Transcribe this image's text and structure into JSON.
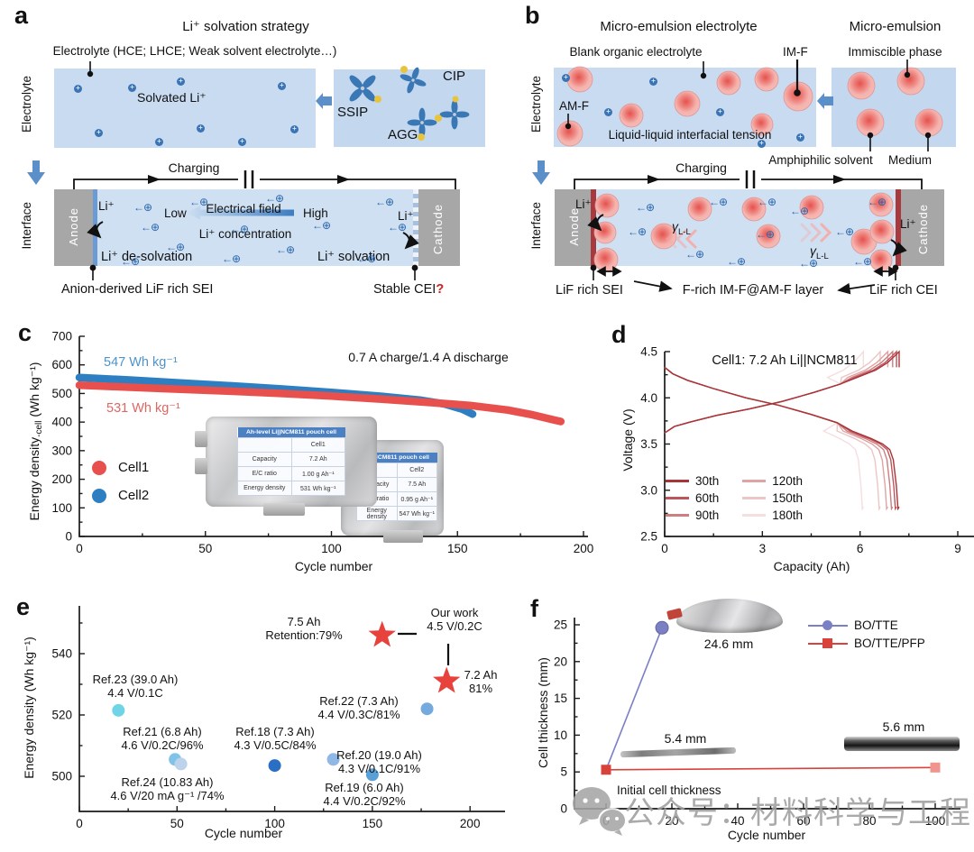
{
  "figure": {
    "a": {
      "letter": "a",
      "title": "Li⁺ solvation strategy",
      "electrolyte_note": "Electrolyte (HCE; LHCE; Weak solvent electrolyte…)",
      "side_electrolyte": "Electrolyte",
      "solvated": "Solvated Li⁺",
      "ssip": "SSIP",
      "cip": "CIP",
      "agg": "AGG",
      "charging": "Charging",
      "side_interface": "Interface",
      "anode": "Anode",
      "cathode": "Cathode",
      "li": "Li⁺",
      "electrical_field": "Electrical field",
      "low": "Low",
      "high": "High",
      "li_concentration": "Li⁺ concentration",
      "desolvation": "Li⁺ de-solvation",
      "solvation": "Li⁺ solvation",
      "sei": "Anion-derived LiF rich SEI",
      "cei": "Stable CEI",
      "cei_mark": "?"
    },
    "b": {
      "letter": "b",
      "title": "Micro-emulsion electrolyte",
      "inset_title": "Micro-emulsion",
      "blank": "Blank organic electrolyte",
      "imf": "IM-F",
      "immiscible": "Immiscible phase",
      "side_electrolyte": "Electrolyte",
      "amf": "AM-F",
      "tension": "Liquid-liquid interfacial tension",
      "amphiphilic": "Amphiphilic solvent",
      "medium": "Medium",
      "charging": "Charging",
      "side_interface": "Interface",
      "anode": "Anode",
      "cathode": "Cathode",
      "li": "Li⁺",
      "gamma": "γ",
      "gamma_sub": "L-L",
      "sei": "LiF rich SEI",
      "layer": "F-rich IM-F@AM-F layer",
      "cei": "LiF rich CEI"
    },
    "c": {
      "letter": "c",
      "ylabel_main": "Energy density",
      "ylabel_sub": "-cell",
      "ylabel_unit": " (Wh kg⁻¹)",
      "xlabel": "Cycle number",
      "annotation": "0.7 A charge/1.4 A discharge",
      "cell2_value": "547 Wh kg⁻¹",
      "cell1_value": "531 Wh kg⁻¹",
      "inset": {
        "cell1": {
          "header": "Ah-level Li||NCM811 pouch cell",
          "rows": [
            [
              "",
              "Cell1"
            ],
            [
              "Capacity",
              "7.2 Ah"
            ],
            [
              "E/C ratio",
              "1.00 g Ah⁻¹"
            ],
            [
              "Energy density",
              "531 Wh kg⁻¹"
            ]
          ]
        },
        "cell2": {
          "header": "Li||NCM811 pouch cell",
          "rows": [
            [
              "",
              "Cell2"
            ],
            [
              "Capacity",
              "7.5 Ah"
            ],
            [
              "E/C ratio",
              "0.95 g Ah⁻¹"
            ],
            [
              "Energy density",
              "547 Wh kg⁻¹"
            ]
          ]
        }
      }
    },
    "d": {
      "letter": "d",
      "annotation": "Cell1: 7.2 Ah Li||NCM811",
      "ylabel": "Voltage (V)",
      "xlabel": "Capacity (Ah)"
    },
    "e": {
      "letter": "e",
      "ylabel": "Energy density (Wh kg⁻¹)",
      "xlabel": "Cycle number"
    },
    "f": {
      "letter": "f",
      "ylabel": "Cell thickness (mm)",
      "xlabel": "Cycle number",
      "watermark": "公众号：材料科学与工程"
    },
    "sym": {
      "plus": "+",
      "ion_arrow": "←⊕"
    }
  },
  "chart_data": [
    {
      "id": "c",
      "type": "scatter",
      "xlabel": "Cycle number",
      "ylabel": "Energy density-cell (Wh kg⁻¹)",
      "xlim": [
        0,
        200
      ],
      "ylim": [
        0,
        700
      ],
      "xticks": [
        0,
        50,
        100,
        150,
        200
      ],
      "xminor": [
        25,
        75,
        125,
        175
      ],
      "yticks": [
        0,
        100,
        200,
        300,
        400,
        500,
        600,
        700
      ],
      "yminor": [
        50,
        150,
        250,
        350,
        450,
        550,
        650
      ],
      "annotation": "0.7 A charge/1.4 A discharge",
      "legend_position": "lower-left",
      "series": [
        {
          "name": "Cell1",
          "color": "#e8504d",
          "value_label": "531 Wh kg⁻¹",
          "points": [
            [
              0,
              529
            ],
            [
              20,
              522
            ],
            [
              40,
              515
            ],
            [
              60,
              508
            ],
            [
              80,
              500
            ],
            [
              100,
              491
            ],
            [
              120,
              480
            ],
            [
              140,
              468
            ],
            [
              155,
              458
            ],
            [
              170,
              442
            ],
            [
              180,
              425
            ],
            [
              188,
              408
            ],
            [
              191,
              402
            ]
          ]
        },
        {
          "name": "Cell2",
          "color": "#2e7fc1",
          "value_label": "547 Wh kg⁻¹",
          "points": [
            [
              0,
              556
            ],
            [
              20,
              547
            ],
            [
              40,
              537
            ],
            [
              60,
              527
            ],
            [
              80,
              516
            ],
            [
              100,
              504
            ],
            [
              120,
              490
            ],
            [
              135,
              477
            ],
            [
              145,
              463
            ],
            [
              152,
              445
            ],
            [
              156,
              428
            ]
          ]
        }
      ]
    },
    {
      "id": "d",
      "type": "line",
      "annotation": "Cell1: 7.2 Ah Li||NCM811",
      "xlabel": "Capacity (Ah)",
      "ylabel": "Voltage (V)",
      "xlim": [
        0,
        9
      ],
      "ylim": [
        2.5,
        4.5
      ],
      "xticks": [
        0,
        3,
        6,
        9
      ],
      "xminor": [
        1.5,
        4.5,
        7.5
      ],
      "yticks": [
        "2.5",
        "3.0",
        "3.5",
        "4.0",
        "4.5"
      ],
      "yminor": [
        2.75,
        3.25,
        3.75,
        4.25
      ],
      "voltage_window": [
        2.8,
        4.5
      ],
      "series": [
        {
          "name": "30th",
          "capacity": 7.2,
          "color": "#a93438"
        },
        {
          "name": "60th",
          "capacity": 7.12,
          "color": "#bd555b"
        },
        {
          "name": "90th",
          "capacity": 7.0,
          "color": "#cf7d80"
        },
        {
          "name": "120th",
          "capacity": 6.85,
          "color": "#dfa3a3"
        },
        {
          "name": "150th",
          "capacity": 6.62,
          "color": "#ecc6c5"
        },
        {
          "name": "180th",
          "capacity": 6.1,
          "color": "#f4dfde"
        }
      ]
    },
    {
      "id": "e",
      "type": "scatter",
      "xlabel": "Cycle number",
      "ylabel": "Energy density (Wh kg⁻¹)",
      "xlim": [
        0,
        218
      ],
      "ylim": [
        496,
        552
      ],
      "xticks": [
        0,
        50,
        100,
        150,
        200
      ],
      "xminor": [
        25,
        75,
        125,
        175
      ],
      "yticks": [
        500,
        520,
        540
      ],
      "yminor": [
        510,
        530,
        550
      ],
      "points": [
        {
          "name": "Ref23",
          "x": 20,
          "y": 521.5,
          "color": "#6fd4e6",
          "marker": "circle",
          "label1": "Ref.23 (39.0 Ah)",
          "label2": "4.4 V/0.1C"
        },
        {
          "name": "Ref21",
          "x": 49,
          "y": 505.5,
          "color": "#7fc3e8",
          "marker": "circle",
          "label1": "Ref.21 (6.8 Ah)",
          "label2": "4.6 V/0.2C/96%"
        },
        {
          "name": "Ref24",
          "x": 52,
          "y": 504,
          "color": "#bcd3eb",
          "marker": "circle",
          "label1": "Ref.24 (10.83 Ah)",
          "label2": "4.6 V/20 mA g⁻¹ /74%"
        },
        {
          "name": "Ref18",
          "x": 100,
          "y": 503.5,
          "color": "#2a6fc4",
          "marker": "circle",
          "label1": "Ref.18 (7.3 Ah)",
          "label2": "4.3 V/0.5C/84%"
        },
        {
          "name": "Ref20",
          "x": 130,
          "y": 505.5,
          "color": "#8fb8e6",
          "marker": "circle",
          "label1": "Ref.20 (19.0 Ah)",
          "label2": "4.3 V/0.1C/91%"
        },
        {
          "name": "Ref19",
          "x": 150,
          "y": 500.5,
          "color": "#59a0d6",
          "marker": "circle",
          "label1": "Ref.19 (6.0 Ah)",
          "label2": "4.4 V/0.2C/92%"
        },
        {
          "name": "Ref22",
          "x": 178,
          "y": 522,
          "color": "#74aadd",
          "marker": "circle",
          "label1": "Ref.22 (7.3 Ah)",
          "label2": "4.4 V/0.3C/81%"
        },
        {
          "name": "OurWork75",
          "x": 155,
          "y": 546,
          "color": "#e8423d",
          "marker": "star",
          "label1": "7.5 Ah",
          "label2": "Retention:79%"
        },
        {
          "name": "OurWork72",
          "x": 188,
          "y": 531,
          "color": "#e8423d",
          "marker": "star",
          "label1": "7.2 Ah",
          "label2": "81%"
        }
      ],
      "our_work": {
        "line1": "Our work",
        "line2": "4.5 V/0.2C"
      }
    },
    {
      "id": "f",
      "type": "line",
      "xlabel": "Cycle number",
      "ylabel": "Cell thickness (mm)",
      "xlim": [
        0,
        100
      ],
      "ylim": [
        0,
        25
      ],
      "xticks": [
        0,
        20,
        40,
        60,
        80,
        100
      ],
      "xminor": [
        10,
        30,
        50,
        70,
        90
      ],
      "yticks": [
        0,
        5,
        10,
        15,
        20,
        25
      ],
      "yminor": [
        2.5,
        7.5,
        12.5,
        17.5,
        22.5
      ],
      "series": [
        {
          "name": "BO/TTE",
          "color": "#7b7fc4",
          "marker": "circle",
          "points": [
            [
              0,
              5.3
            ],
            [
              17,
              24.6
            ]
          ]
        },
        {
          "name": "BO/TTE/PFP",
          "color": "#d8423a",
          "marker": "square",
          "points": [
            [
              0,
              5.3
            ],
            [
              100,
              5.6
            ]
          ],
          "end_marker_color": "#f0948e"
        }
      ],
      "annotations": {
        "swollen": "24.6 mm",
        "thin1": "5.4 mm",
        "thin2": "5.6 mm",
        "initial": "Initial cell thickness"
      }
    }
  ]
}
